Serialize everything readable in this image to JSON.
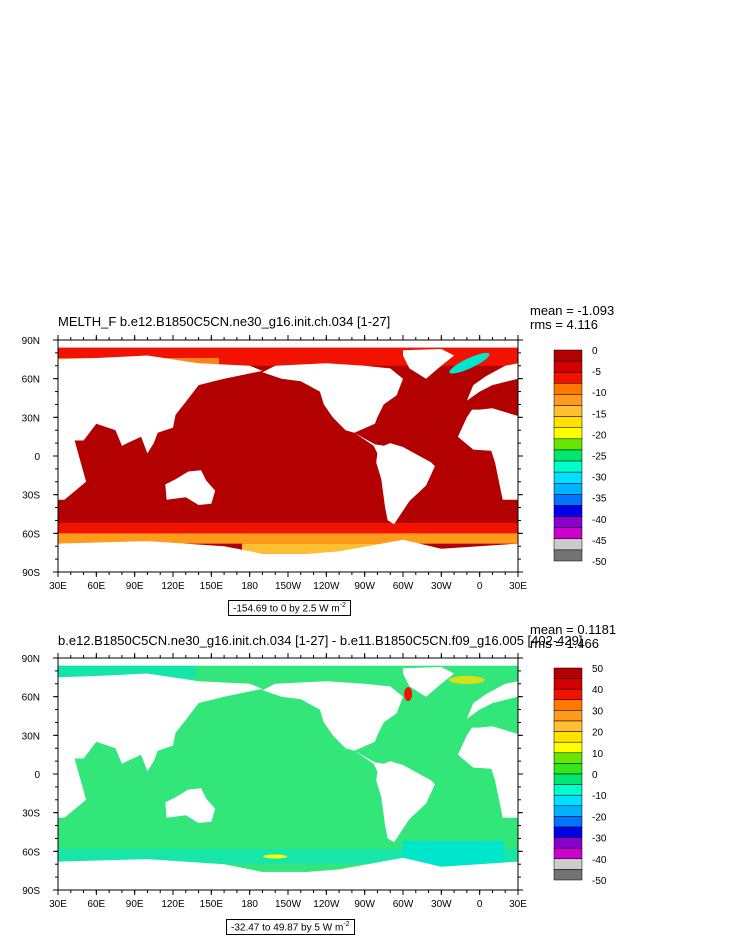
{
  "chart_data": [
    {
      "type": "heatmap",
      "title": "MELTH_F b.e12.B1850C5CN.ne30_g16.init.ch.034 [1-27]",
      "stats": {
        "mean": "mean = -1.093",
        "rms": "rms = 4.116"
      },
      "x_ticks": [
        "30E",
        "60E",
        "90E",
        "120E",
        "150E",
        "180",
        "150W",
        "120W",
        "90W",
        "60W",
        "30W",
        "0",
        "30E"
      ],
      "y_ticks": [
        "90N",
        "60N",
        "30N",
        "0",
        "30S",
        "60S",
        "90S"
      ],
      "colorbar": {
        "labels": [
          "0",
          "-5",
          "-10",
          "-15",
          "-20",
          "-25",
          "-30",
          "-35",
          "-40",
          "-45",
          "-50"
        ],
        "colors": [
          "#b30000",
          "#d40000",
          "#f21200",
          "#ff7800",
          "#ff9a1a",
          "#ffbf33",
          "#ffe000",
          "#ffff00",
          "#66e600",
          "#00e673",
          "#00ffcc",
          "#00e0ff",
          "#00b3ff",
          "#0073ff",
          "#0000e6",
          "#8a00cc",
          "#cc00cc",
          "#cccccc",
          "#737373"
        ]
      },
      "range_label": "-154.69 to 0 by 2.5  W m",
      "range_unit_exp": "-2"
    },
    {
      "type": "heatmap",
      "title": "b.e12.B1850C5CN.ne30_g16.init.ch.034 [1-27] - b.e11.B1850C5CN.f09_g16.005 [402-429]",
      "stats": {
        "mean": "mean = 0.1181",
        "rms": "rms = 1.466"
      },
      "x_ticks": [
        "30E",
        "60E",
        "90E",
        "120E",
        "150E",
        "180",
        "150W",
        "120W",
        "90W",
        "60W",
        "30W",
        "0",
        "30E"
      ],
      "y_ticks": [
        "90N",
        "60N",
        "30N",
        "0",
        "30S",
        "60S",
        "90S"
      ],
      "colorbar": {
        "labels": [
          "50",
          "40",
          "30",
          "20",
          "10",
          "0",
          "-10",
          "-20",
          "-30",
          "-40",
          "-50"
        ],
        "colors": [
          "#b30000",
          "#d40000",
          "#f21200",
          "#ff7800",
          "#ff9a1a",
          "#ffbf33",
          "#ffe000",
          "#ffff00",
          "#66e600",
          "#33e61a",
          "#00e673",
          "#00ffcc",
          "#00e0ff",
          "#00b3ff",
          "#0073ff",
          "#0000e6",
          "#8a00cc",
          "#cc00cc",
          "#cccccc",
          "#737373"
        ]
      },
      "range_label": "-32.47 to 49.87 by 5  W m",
      "range_unit_exp": "-2"
    }
  ],
  "colors": {
    "land": "#ffffff",
    "panel1_ocean": "#b30000",
    "panel1_coast": "#f21200",
    "panel1_ice_edge": "#ff9a1a",
    "panel2_ocean": "#33e67a",
    "panel2_ice": "#00e6cc"
  }
}
